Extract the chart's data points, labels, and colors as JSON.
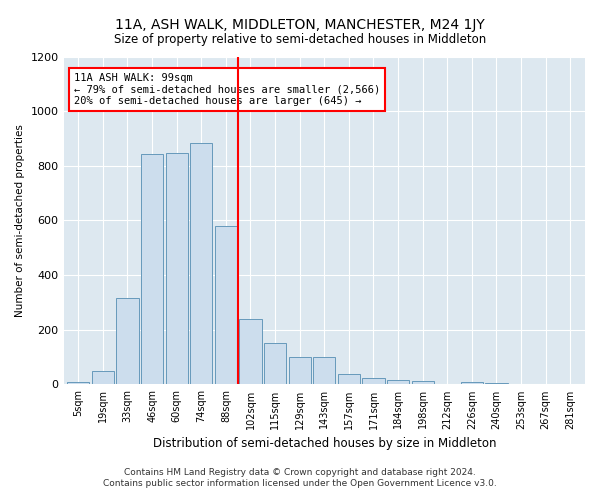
{
  "title": "11A, ASH WALK, MIDDLETON, MANCHESTER, M24 1JY",
  "subtitle": "Size of property relative to semi-detached houses in Middleton",
  "xlabel": "Distribution of semi-detached houses by size in Middleton",
  "ylabel": "Number of semi-detached properties",
  "categories": [
    "5sqm",
    "19sqm",
    "33sqm",
    "46sqm",
    "60sqm",
    "74sqm",
    "88sqm",
    "102sqm",
    "115sqm",
    "129sqm",
    "143sqm",
    "157sqm",
    "171sqm",
    "184sqm",
    "198sqm",
    "212sqm",
    "226sqm",
    "240sqm",
    "253sqm",
    "267sqm",
    "281sqm"
  ],
  "values": [
    8,
    50,
    315,
    845,
    848,
    885,
    580,
    238,
    152,
    100,
    100,
    37,
    22,
    18,
    12,
    0,
    10,
    5,
    0,
    0,
    0
  ],
  "bar_color": "#ccdded",
  "bar_edge_color": "#6699bb",
  "annotation_text": "11A ASH WALK: 99sqm\n← 79% of semi-detached houses are smaller (2,566)\n20% of semi-detached houses are larger (645) →",
  "annotation_box_color": "white",
  "annotation_box_edge": "red",
  "red_line_color": "red",
  "ylim": [
    0,
    1200
  ],
  "yticks": [
    0,
    200,
    400,
    600,
    800,
    1000,
    1200
  ],
  "footer_line1": "Contains HM Land Registry data © Crown copyright and database right 2024.",
  "footer_line2": "Contains public sector information licensed under the Open Government Licence v3.0.",
  "fig_bg_color": "#ffffff",
  "plot_bg_color": "#dde8f0"
}
